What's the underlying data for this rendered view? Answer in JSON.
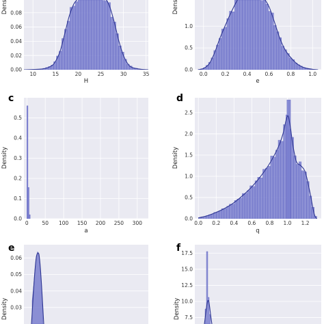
{
  "chart_data": [
    {
      "panel": "a",
      "type": "histogram",
      "panel_label": "",
      "xlabel": "H",
      "ylabel": "Density",
      "xlim": [
        8,
        35.5
      ],
      "ylim": [
        0,
        0.098
      ],
      "xticks": [
        10,
        15,
        20,
        25,
        30,
        35
      ],
      "xtick_labels": [
        "10",
        "15",
        "20",
        "25",
        "30",
        "35"
      ],
      "yticks": [
        0,
        0.02,
        0.04,
        0.06,
        0.08
      ],
      "ytick_labels": [
        "0.00",
        "0.02",
        "0.04",
        "0.06",
        "0.08"
      ],
      "kde": {
        "x": [
          8,
          12,
          14,
          15,
          16,
          17,
          18,
          19,
          20,
          21,
          22,
          23,
          24,
          25,
          26,
          27,
          28,
          29,
          30,
          31,
          32,
          34,
          35.5
        ],
        "y": [
          0,
          0.001,
          0.005,
          0.012,
          0.026,
          0.05,
          0.075,
          0.092,
          0.1,
          0.104,
          0.104,
          0.104,
          0.105,
          0.104,
          0.1,
          0.088,
          0.066,
          0.04,
          0.02,
          0.008,
          0.003,
          0.0005,
          0
        ]
      }
    },
    {
      "panel": "b",
      "type": "histogram",
      "panel_label": "",
      "xlabel": "e",
      "ylabel": "Density",
      "xlim": [
        -0.08,
        1.08
      ],
      "ylim": [
        0,
        1.6
      ],
      "xticks": [
        0,
        0.2,
        0.4,
        0.6,
        0.8,
        1.0
      ],
      "xtick_labels": [
        "0.0",
        "0.2",
        "0.4",
        "0.6",
        "0.8",
        "1.0"
      ],
      "yticks": [
        0,
        0.5,
        1.0
      ],
      "ytick_labels": [
        "0.0",
        "0.5",
        "1.0"
      ],
      "kde": {
        "x": [
          -0.05,
          0,
          0.05,
          0.1,
          0.15,
          0.2,
          0.25,
          0.3,
          0.35,
          0.4,
          0.45,
          0.5,
          0.55,
          0.6,
          0.65,
          0.7,
          0.75,
          0.8,
          0.85,
          0.9,
          0.95,
          1.0,
          1.05
        ],
        "y": [
          0,
          0.03,
          0.13,
          0.38,
          0.72,
          1.02,
          1.3,
          1.55,
          1.75,
          1.8,
          1.82,
          1.78,
          1.65,
          1.45,
          1.1,
          0.72,
          0.45,
          0.28,
          0.15,
          0.07,
          0.03,
          0.01,
          0
        ]
      }
    },
    {
      "panel": "c",
      "type": "histogram",
      "panel_label": "c",
      "xlabel": "a",
      "ylabel": "Density",
      "xlim": [
        -8,
        330
      ],
      "ylim": [
        0,
        0.6
      ],
      "xticks": [
        0,
        50,
        100,
        150,
        200,
        250,
        300
      ],
      "xtick_labels": [
        "0",
        "50",
        "100",
        "150",
        "200",
        "250",
        "300"
      ],
      "yticks": [
        0,
        0.1,
        0.2,
        0.3,
        0.4,
        0.5
      ],
      "ytick_labels": [
        "0.0",
        "0.1",
        "0.2",
        "0.3",
        "0.4",
        "0.5"
      ],
      "bins": [
        {
          "x0": 0,
          "x1": 3,
          "h": 0.56
        },
        {
          "x0": 3,
          "x1": 6,
          "h": 0.155
        },
        {
          "x0": 6,
          "x1": 9,
          "h": 0.02
        }
      ]
    },
    {
      "panel": "d",
      "type": "histogram",
      "panel_label": "d",
      "xlabel": "q",
      "ylabel": "Density",
      "xlim": [
        -0.04,
        1.38
      ],
      "ylim": [
        0,
        2.85
      ],
      "xticks": [
        0,
        0.2,
        0.4,
        0.6,
        0.8,
        1.0,
        1.2
      ],
      "xtick_labels": [
        "0.0",
        "0.2",
        "0.4",
        "0.6",
        "0.8",
        "1.0",
        "1.2"
      ],
      "yticks": [
        0,
        0.5,
        1.0,
        1.5,
        2.0,
        2.5
      ],
      "ytick_labels": [
        "0.0",
        "0.5",
        "1.0",
        "1.5",
        "2.0",
        "2.5"
      ],
      "kde": {
        "x": [
          0,
          0.1,
          0.2,
          0.3,
          0.4,
          0.5,
          0.6,
          0.7,
          0.8,
          0.9,
          0.95,
          1.0,
          1.03,
          1.06,
          1.1,
          1.15,
          1.2,
          1.25,
          1.3,
          1.33
        ],
        "y": [
          0.02,
          0.07,
          0.15,
          0.25,
          0.38,
          0.55,
          0.75,
          1.0,
          1.3,
          1.7,
          2.0,
          2.42,
          2.2,
          1.75,
          1.35,
          1.25,
          1.1,
          0.65,
          0.12,
          0
        ]
      },
      "spike": {
        "x0": 0.995,
        "x1": 1.035,
        "h": 2.8
      }
    },
    {
      "panel": "e",
      "type": "histogram",
      "panel_label": "e",
      "xlabel": "",
      "ylabel": "Density",
      "ylim": [
        0.02,
        0.068
      ],
      "yticks": [
        0.03,
        0.04,
        0.05,
        0.06
      ],
      "ytick_labels": [
        "0.03",
        "0.04",
        "0.05",
        "0.06"
      ]
    },
    {
      "panel": "f",
      "type": "histogram",
      "panel_label": "f",
      "xlabel": "",
      "ylabel": "Density",
      "ylim": [
        6.5,
        18.8
      ],
      "yticks": [
        7.5,
        10.0,
        12.5,
        15.0,
        17.5
      ],
      "ytick_labels": [
        "7.5",
        "10.0",
        "12.5",
        "15.0",
        "17.5"
      ]
    }
  ],
  "colors": {
    "bar_fill": "#7a7fcf",
    "bar_edge": "#5a5fc0",
    "kde_line": "#2d3592",
    "axes_bg": "#eaeaf2",
    "grid": "#ffffff"
  }
}
